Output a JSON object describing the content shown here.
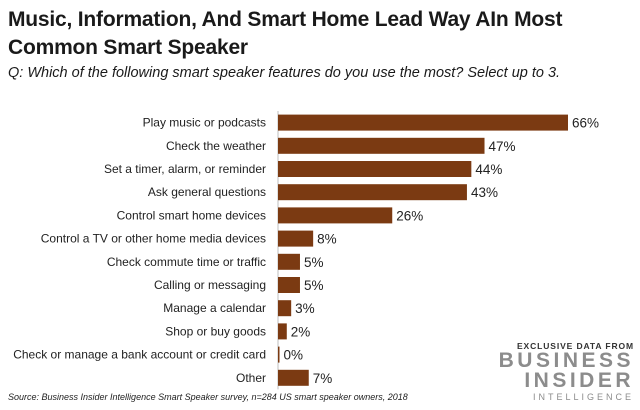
{
  "header": {
    "title": "Music, Information, And Smart Home Lead Way AIn Most Common Smart Speaker",
    "subtitle": "Q: Which of the following smart speaker features do you use the most? Select up to 3."
  },
  "chart_data": {
    "type": "bar",
    "orientation": "horizontal",
    "title": "Music, Information, And Smart Home Lead Way AIn Most Common Smart Speaker",
    "subtitle": "Q: Which of the following smart speaker features do you use the most? Select up to 3.",
    "categories": [
      "Play music or podcasts",
      "Check the weather",
      "Set a timer, alarm, or reminder",
      "Ask general questions",
      "Control smart home devices",
      "Control a TV or other home media devices",
      "Check commute time or traffic",
      "Calling or messaging",
      "Manage a calendar",
      "Shop or buy goods",
      "Check or manage a bank account or credit card",
      "Other"
    ],
    "values": [
      66,
      47,
      44,
      43,
      26,
      8,
      5,
      5,
      3,
      2,
      0,
      7
    ],
    "value_labels": [
      "66%",
      "47%",
      "44%",
      "43%",
      "26%",
      "8%",
      "5%",
      "5%",
      "3%",
      "2%",
      "0%",
      "7%"
    ],
    "unit": "%",
    "xlim": [
      0,
      66
    ],
    "bar_color": "#7b3a12",
    "grid": false
  },
  "source": "Source: Business Insider Intelligence Smart Speaker survey, n=284 US smart speaker owners, 2018",
  "brand": {
    "tagline": "EXCLUSIVE DATA FROM",
    "line1": "BUSINESS",
    "line2": "INSIDER",
    "line3": "INTELLIGENCE"
  }
}
